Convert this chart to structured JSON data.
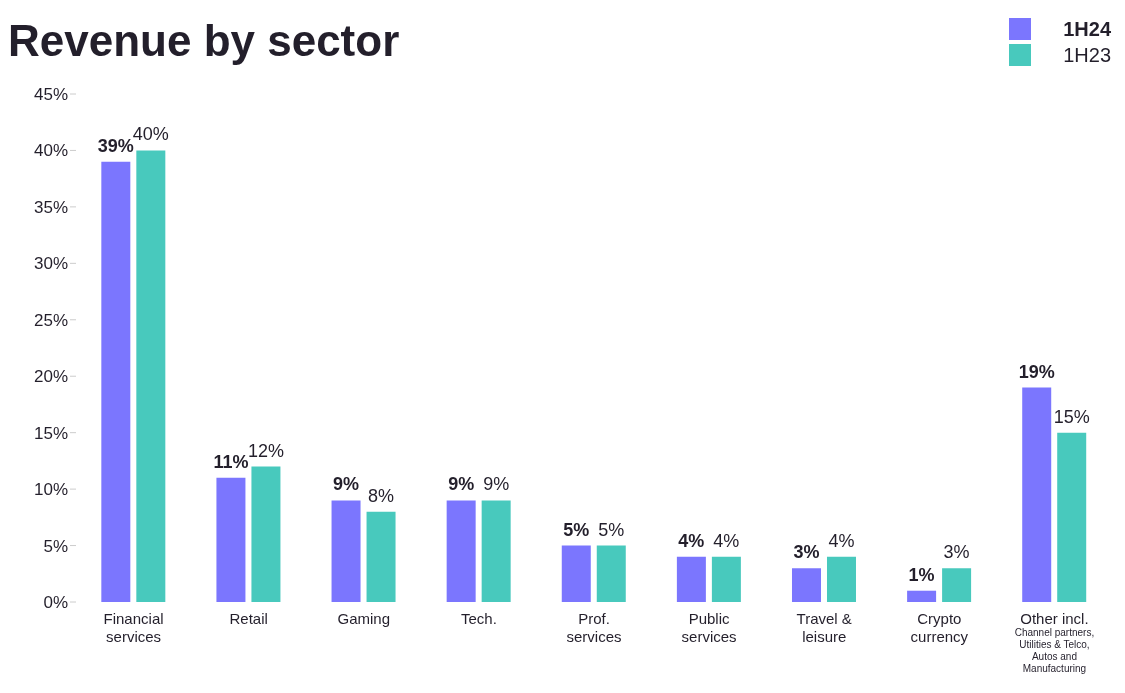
{
  "chart_data": {
    "type": "bar",
    "title": "Revenue by sector",
    "categories": [
      "Financial\nservices",
      "Retail",
      "Gaming",
      "Tech.",
      "Prof.\nservices",
      "Public\nservices",
      "Travel &\nleisure",
      "Crypto\ncurrency",
      "Other incl.\nChannel partners,\nUtilities & Telco,\nAutos and\nManufacturing"
    ],
    "series": [
      {
        "name": "1H24",
        "color": "#7b76fe",
        "values": [
          39,
          11,
          9,
          9,
          5,
          4,
          3,
          1,
          19
        ],
        "value_labels": [
          "39%",
          "11%",
          "9%",
          "9%",
          "5%",
          "4%",
          "3%",
          "1%",
          "19%"
        ]
      },
      {
        "name": "1H23",
        "color": "#48c9bd",
        "values": [
          40,
          12,
          8,
          9,
          5,
          4,
          4,
          3,
          15
        ],
        "value_labels": [
          "40%",
          "12%",
          "8%",
          "9%",
          "5%",
          "4%",
          "4%",
          "3%",
          "15%"
        ]
      }
    ],
    "ylim": [
      0,
      45
    ],
    "yticks": [
      {
        "value": 0,
        "label": "0%"
      },
      {
        "value": 5,
        "label": "5%"
      },
      {
        "value": 10,
        "label": "10%"
      },
      {
        "value": 15,
        "label": "15%"
      },
      {
        "value": 20,
        "label": "20%"
      },
      {
        "value": 25,
        "label": "25%"
      },
      {
        "value": 30,
        "label": "30%"
      },
      {
        "value": 35,
        "label": "35%"
      },
      {
        "value": 40,
        "label": "40%"
      },
      {
        "value": 45,
        "label": "45%"
      }
    ],
    "grid": false,
    "legend": "top right"
  }
}
